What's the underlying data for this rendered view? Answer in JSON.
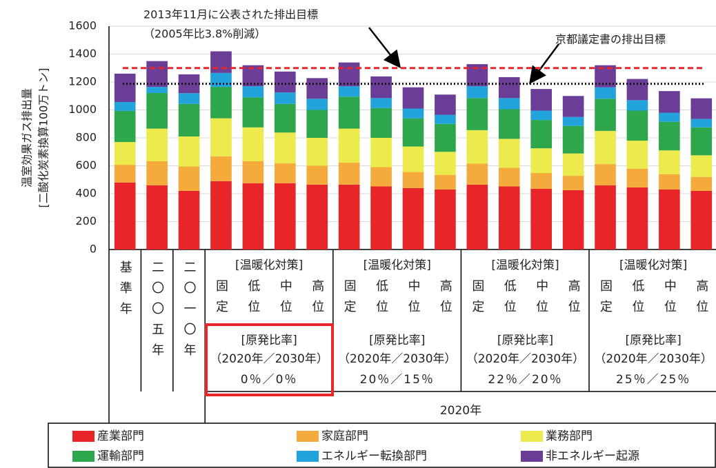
{
  "chart_data": {
    "type": "stacked-bar",
    "ylabel": [
      "温室効果ガス排出量",
      "[二酸化炭素換算100万トン]"
    ],
    "categories": [
      "基準年",
      "二〇〇五年",
      "二〇一〇年",
      "固定",
      "低位",
      "中位",
      "高位",
      "固定",
      "低位",
      "中位",
      "高位",
      "固定",
      "低位",
      "中位",
      "高位",
      "固定",
      "低位",
      "中位",
      "高位"
    ],
    "groups": [
      {
        "header": "[温暖化対策]",
        "ratio_header": "[原発比率]",
        "ratio_sub": "（2020年／2030年）",
        "ratio": "0％／0％"
      },
      {
        "header": "[温暖化対策]",
        "ratio_header": "[原発比率]",
        "ratio_sub": "（2020年／2030年）",
        "ratio": "20％／15％"
      },
      {
        "header": "[温暖化対策]",
        "ratio_header": "[原発比率]",
        "ratio_sub": "（2020年／2030年）",
        "ratio": "22％／20％"
      },
      {
        "header": "[温暖化対策]",
        "ratio_header": "[原発比率]",
        "ratio_sub": "（2020年／2030年）",
        "ratio": "25％／25％"
      }
    ],
    "year_label": "2020年",
    "series": [
      {
        "name": "産業部門",
        "color": "#e8262a",
        "values": [
          480,
          460,
          420,
          490,
          475,
          475,
          465,
          465,
          452,
          440,
          430,
          465,
          452,
          435,
          425,
          460,
          445,
          430,
          420
        ]
      },
      {
        "name": "家庭部門",
        "color": "#f5aa3c",
        "values": [
          127,
          172,
          175,
          178,
          157,
          142,
          135,
          157,
          138,
          115,
          105,
          150,
          133,
          113,
          103,
          152,
          133,
          110,
          100
        ]
      },
      {
        "name": "業務部門",
        "color": "#ecea4c",
        "values": [
          163,
          234,
          215,
          272,
          243,
          221,
          200,
          244,
          210,
          183,
          165,
          240,
          208,
          177,
          160,
          238,
          202,
          170,
          155
        ]
      },
      {
        "name": "運輸部門",
        "color": "#2ea64c",
        "values": [
          223,
          255,
          233,
          225,
          215,
          205,
          200,
          229,
          213,
          202,
          200,
          230,
          212,
          203,
          197,
          230,
          215,
          205,
          200
        ]
      },
      {
        "name": "エネルギー転換部門",
        "color": "#22a3dc",
        "values": [
          64,
          44,
          77,
          100,
          80,
          82,
          80,
          75,
          72,
          70,
          65,
          85,
          80,
          67,
          65,
          82,
          75,
          65,
          60
        ]
      },
      {
        "name": "非エネルギー起源",
        "color": "#6a3d97",
        "values": [
          203,
          185,
          135,
          155,
          150,
          150,
          148,
          170,
          155,
          152,
          145,
          158,
          150,
          155,
          150,
          158,
          152,
          155,
          148
        ]
      }
    ],
    "reference_lines": [
      {
        "label": [
          "2013年11月に公表された排出目標",
          "（2005年比3.8%削減）"
        ],
        "value": 1300,
        "color": "#e8262a",
        "style": "dashed"
      },
      {
        "label": [
          "京都議定書の排出目標"
        ],
        "value": 1187,
        "color": "#111111",
        "style": "dotted"
      }
    ],
    "ylim": [
      0,
      1600
    ],
    "yticks": [
      0,
      200,
      400,
      600,
      800,
      1000,
      1200,
      1400,
      1600
    ],
    "grid": true
  }
}
